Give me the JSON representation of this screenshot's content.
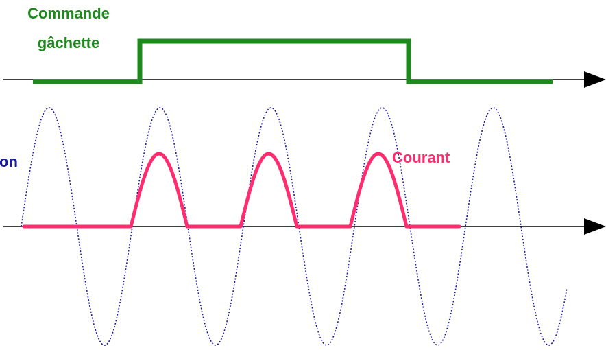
{
  "labels": {
    "gate_line1": "Commande",
    "gate_line2": "gâchette",
    "current": "Courant",
    "voltage_fragment": "on"
  },
  "colors": {
    "gate": "#1e8a1e",
    "current": "#ff2d6f",
    "voltage": "#1a1aa0",
    "axis": "#000000"
  }
}
